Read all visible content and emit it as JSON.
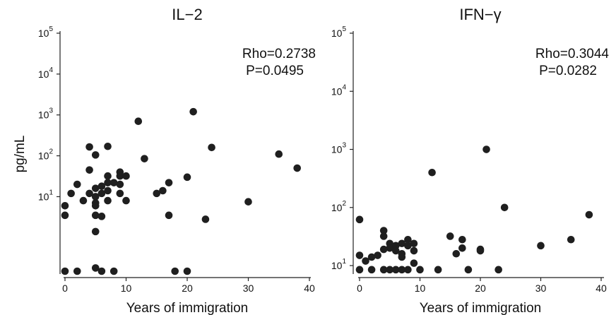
{
  "figure": {
    "ylabel": "pg/mL",
    "marker_color": "#1f1f1f",
    "axis_color": "#222222"
  },
  "chart_data": [
    {
      "type": "scatter",
      "title": "IL−2",
      "xlabel": "Years of immigration",
      "ylabel": "pg/mL",
      "xlim": [
        0,
        40
      ],
      "ylim": [
        0.15,
        100000
      ],
      "yscale": "log",
      "xticks": [
        "0",
        "10",
        "20",
        "30",
        "40"
      ],
      "yticks": [
        {
          "base": "10",
          "exp": "1"
        },
        {
          "base": "10",
          "exp": "2"
        },
        {
          "base": "10",
          "exp": "3"
        },
        {
          "base": "10",
          "exp": "4"
        },
        {
          "base": "10",
          "exp": "5"
        }
      ],
      "stats": {
        "rho": "Rho=0.2738",
        "p": "P=0.0495"
      },
      "grid": false,
      "legend": "none",
      "points": [
        [
          0,
          6
        ],
        [
          0,
          3.5
        ],
        [
          0,
          0.15
        ],
        [
          1,
          12
        ],
        [
          2,
          20
        ],
        [
          2,
          0.15
        ],
        [
          3,
          8
        ],
        [
          4,
          165
        ],
        [
          4,
          45
        ],
        [
          4,
          12
        ],
        [
          5,
          105
        ],
        [
          5,
          16
        ],
        [
          5,
          10
        ],
        [
          5,
          7
        ],
        [
          5,
          6
        ],
        [
          5,
          3.5
        ],
        [
          5,
          1.4
        ],
        [
          5,
          0.18
        ],
        [
          6,
          18
        ],
        [
          6,
          12
        ],
        [
          6,
          3.3
        ],
        [
          6,
          0.15
        ],
        [
          7,
          170
        ],
        [
          7,
          32
        ],
        [
          7,
          22
        ],
        [
          7,
          14
        ],
        [
          7,
          8
        ],
        [
          8,
          22
        ],
        [
          8,
          0.15
        ],
        [
          9,
          40
        ],
        [
          9,
          32
        ],
        [
          9,
          20
        ],
        [
          9,
          12
        ],
        [
          10,
          32
        ],
        [
          10,
          8
        ],
        [
          12,
          700
        ],
        [
          13,
          85
        ],
        [
          15,
          12
        ],
        [
          16,
          14
        ],
        [
          17,
          22
        ],
        [
          17,
          3.5
        ],
        [
          18,
          0.15
        ],
        [
          20,
          30
        ],
        [
          20,
          0.15
        ],
        [
          21,
          1200
        ],
        [
          23,
          2.8
        ],
        [
          24,
          160
        ],
        [
          30,
          7.5
        ],
        [
          35,
          110
        ],
        [
          38,
          50
        ]
      ]
    },
    {
      "type": "scatter",
      "title": "IFN−γ",
      "xlabel": "Years of immigration",
      "ylabel": "",
      "xlim": [
        0,
        40
      ],
      "ylim": [
        8,
        100000
      ],
      "yscale": "log",
      "xticks": [
        "0",
        "10",
        "20",
        "30",
        "40"
      ],
      "yticks": [
        {
          "base": "10",
          "exp": "1"
        },
        {
          "base": "10",
          "exp": "2"
        },
        {
          "base": "10",
          "exp": "3"
        },
        {
          "base": "10",
          "exp": "4"
        },
        {
          "base": "10",
          "exp": "5"
        }
      ],
      "stats": {
        "rho": "Rho=0.3044",
        "p": "P=0.0282"
      },
      "grid": false,
      "legend": "none",
      "points": [
        [
          0,
          62
        ],
        [
          0,
          15
        ],
        [
          0,
          8.5
        ],
        [
          1,
          12
        ],
        [
          2,
          8.5
        ],
        [
          2,
          14
        ],
        [
          3,
          15
        ],
        [
          4,
          40
        ],
        [
          4,
          32
        ],
        [
          4,
          19
        ],
        [
          4,
          8.5
        ],
        [
          5,
          24
        ],
        [
          5,
          20
        ],
        [
          5,
          8.5
        ],
        [
          6,
          22
        ],
        [
          6,
          18
        ],
        [
          6,
          8.5
        ],
        [
          7,
          24
        ],
        [
          7,
          16
        ],
        [
          7,
          14
        ],
        [
          7,
          8.5
        ],
        [
          8,
          28
        ],
        [
          8,
          22
        ],
        [
          8,
          8.5
        ],
        [
          9,
          24
        ],
        [
          9,
          18
        ],
        [
          9,
          11
        ],
        [
          10,
          8.5
        ],
        [
          12,
          400
        ],
        [
          13,
          8.5
        ],
        [
          15,
          32
        ],
        [
          16,
          16
        ],
        [
          17,
          28
        ],
        [
          17,
          20
        ],
        [
          18,
          8.5
        ],
        [
          20,
          19
        ],
        [
          20,
          18
        ],
        [
          21,
          1000
        ],
        [
          23,
          8.5
        ],
        [
          24,
          100
        ],
        [
          30,
          22
        ],
        [
          35,
          28
        ],
        [
          38,
          75
        ]
      ]
    }
  ]
}
